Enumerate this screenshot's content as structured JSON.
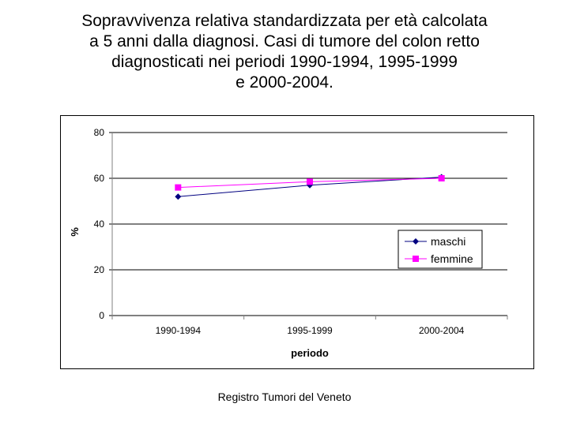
{
  "title_lines": [
    "Sopravvivenza relativa standardizzata per età calcolata",
    "a 5 anni dalla diagnosi. Casi di tumore del colon retto",
    "diagnosticati nei periodi 1990-1994, 1995-1999",
    "e 2000-2004."
  ],
  "source": "Registro Tumori del Veneto",
  "colors": {
    "maschi": "#000080",
    "femmine": "#ff00ff",
    "grid": "#000000",
    "axis_text": "#000000"
  },
  "chart_data": {
    "type": "line",
    "title": "Sopravvivenza relativa standardizzata per età calcolata a 5 anni dalla diagnosi. Casi di tumore del colon retto diagnosticati nei periodi 1990-1994, 1995-1999 e 2000-2004.",
    "categories": [
      "1990-1994",
      "1995-1999",
      "2000-2004"
    ],
    "series": [
      {
        "name": "maschi",
        "values": [
          52,
          57,
          60.5
        ]
      },
      {
        "name": "femmine",
        "values": [
          56,
          58.5,
          60
        ]
      }
    ],
    "xlabel": "periodo",
    "ylabel": "%",
    "ylim": [
      0,
      80
    ],
    "yticks": [
      0,
      20,
      40,
      60,
      80
    ],
    "grid": true,
    "legend_position": "right"
  }
}
